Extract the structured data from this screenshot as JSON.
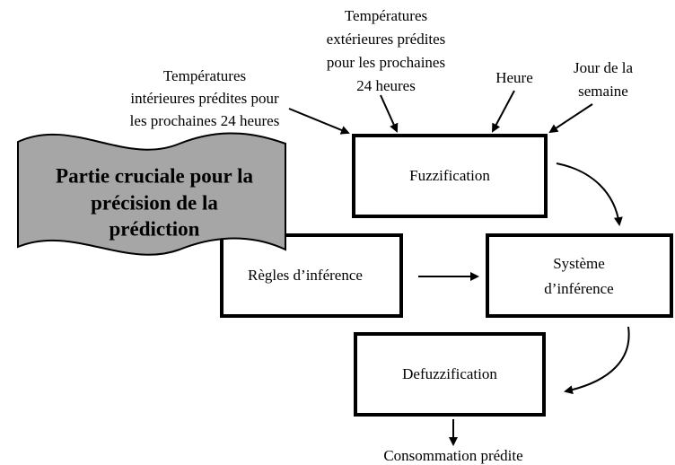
{
  "inputs": [
    {
      "lines": [
        "Températures",
        "intérieures prédites pour",
        "les prochaines 24 heures"
      ]
    },
    {
      "lines": [
        "Températures",
        "extérieures prédites",
        "pour les prochaines",
        "24 heures"
      ]
    },
    {
      "lines": [
        "Heure"
      ]
    },
    {
      "lines": [
        "Jour de la",
        "semaine"
      ]
    }
  ],
  "boxes": [
    {
      "lines": [
        "Fuzzification"
      ]
    },
    {
      "lines": [
        "Règles d’inférence"
      ]
    },
    {
      "lines": [
        "Système",
        "d’inférence"
      ]
    },
    {
      "lines": [
        "Defuzzification"
      ]
    }
  ],
  "banner": {
    "lines": [
      "Partie cruciale pour la",
      "précision de la",
      "prédiction"
    ]
  },
  "output": "Consommation prédite"
}
